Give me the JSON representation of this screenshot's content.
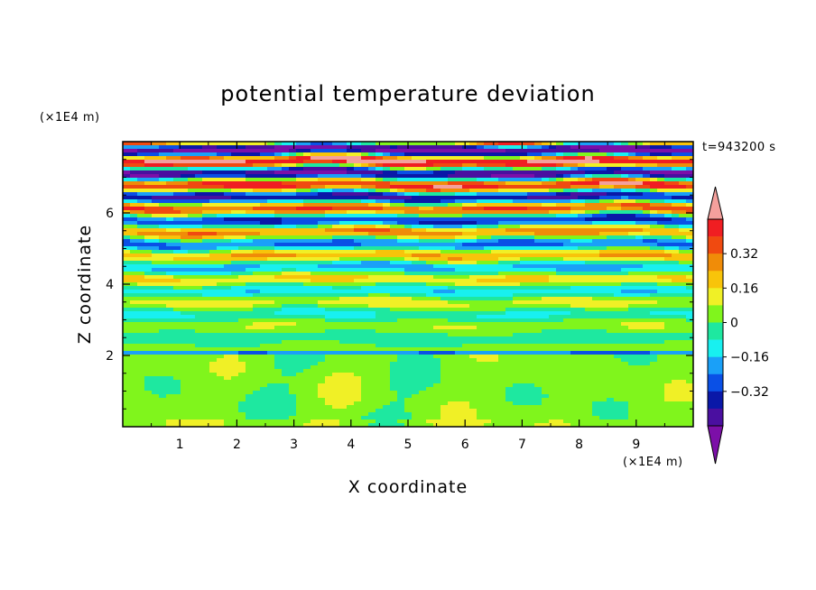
{
  "chart_data": {
    "type": "heatmap",
    "title": "potential temperature deviation",
    "xlabel": "X coordinate",
    "ylabel": "Z coordinate",
    "x_unit": "(×1E4 m)",
    "y_unit": "(×1E4 m)",
    "time_label": "t=943200 s",
    "xlim": [
      0,
      10
    ],
    "ylim": [
      0,
      8
    ],
    "x_ticks": [
      "1",
      "2",
      "3",
      "4",
      "5",
      "6",
      "7",
      "8",
      "9"
    ],
    "y_ticks": [
      "2",
      "4",
      "6"
    ],
    "colorbar": {
      "levels": [
        -0.48,
        -0.4,
        -0.32,
        -0.24,
        -0.16,
        -0.08,
        0,
        0.08,
        0.16,
        0.24,
        0.32,
        0.4,
        0.48
      ],
      "labels": [
        "0.32",
        "0.16",
        "0",
        "−0.16",
        "−0.32"
      ],
      "label_values": [
        0.32,
        0.16,
        0,
        -0.16,
        -0.32
      ],
      "under_color": "#7c0fa8",
      "over_color": "#f4a09c",
      "colors": [
        "#4a0fa0",
        "#0a18a8",
        "#0a50e6",
        "#1aa0f8",
        "#18f0f0",
        "#1ee8a0",
        "#80f51c",
        "#f0f026",
        "#f8c40a",
        "#f08c08",
        "#f04a10",
        "#f01e22"
      ]
    },
    "field_description_rows": [
      {
        "z_range": [
          0,
          2.0
        ],
        "dominant_value": 0.02
      },
      {
        "z_range": [
          2.0,
          4.0
        ],
        "dominant_value": 0.0
      },
      {
        "z_range": [
          4.0,
          6.0
        ],
        "dominant_value": 0.05
      },
      {
        "z_range": [
          6.0,
          8.0
        ],
        "dominant_value": 0.1
      }
    ]
  }
}
